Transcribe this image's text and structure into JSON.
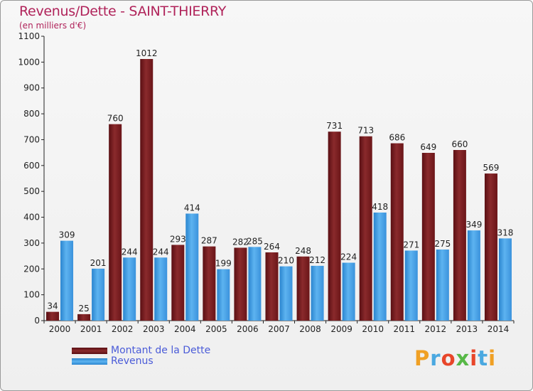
{
  "chart_data": {
    "type": "bar",
    "title": "Revenus/Dette - SAINT-THIERRY",
    "subtitle": "(en milliers d'€)",
    "categories": [
      "2000",
      "2001",
      "2002",
      "2003",
      "2004",
      "2005",
      "2006",
      "2007",
      "2008",
      "2009",
      "2010",
      "2011",
      "2012",
      "2013",
      "2014"
    ],
    "series": [
      {
        "name": "Montant de la Dette",
        "color": "#7a1b1f",
        "values": [
          34,
          25,
          760,
          1012,
          293,
          287,
          282,
          264,
          248,
          731,
          713,
          686,
          649,
          660,
          569
        ]
      },
      {
        "name": "Revenus",
        "color": "#3f9fe8",
        "values": [
          309,
          201,
          244,
          244,
          414,
          199,
          285,
          210,
          212,
          224,
          418,
          271,
          275,
          349,
          318
        ]
      }
    ],
    "ylim": [
      0,
      1100
    ],
    "yticks": [
      0,
      100,
      200,
      300,
      400,
      500,
      600,
      700,
      800,
      900,
      1000,
      1100
    ],
    "grid": false,
    "legend_position": "bottom-left"
  },
  "logo": {
    "text": "Proxiti",
    "colors": [
      "#f0a024",
      "#4aa8e0",
      "#e8462a",
      "#57b847",
      "#e8462a",
      "#4aa8e0",
      "#f0a024"
    ]
  }
}
